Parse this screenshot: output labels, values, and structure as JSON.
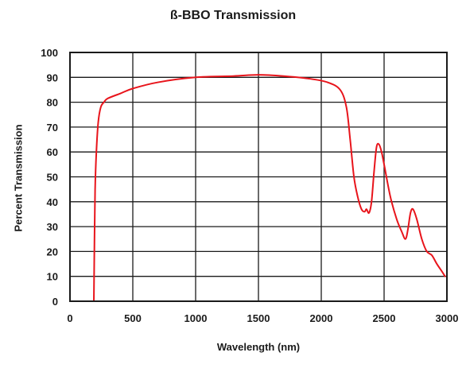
{
  "chart_data": {
    "type": "line",
    "title": "ß-BBO Transmission",
    "xlabel": "Wavelength (nm)",
    "ylabel": "Percent Transmission",
    "xlim": [
      0,
      3000
    ],
    "ylim": [
      0,
      100
    ],
    "xticks": [
      0,
      500,
      1000,
      1500,
      2000,
      2500,
      3000
    ],
    "yticks": [
      0,
      10,
      20,
      30,
      40,
      50,
      60,
      70,
      80,
      90,
      100
    ],
    "grid": true,
    "line_color": "#e8141b",
    "series": [
      {
        "x": [
          190,
          195,
          200,
          210,
          225,
          245,
          270,
          300,
          400,
          500,
          700,
          1000,
          1300,
          1500,
          1700,
          1900,
          2050,
          2150,
          2200,
          2230,
          2260,
          2290,
          2320,
          2345,
          2360,
          2380,
          2400,
          2420,
          2440,
          2460,
          2480,
          2500,
          2550,
          2600,
          2640,
          2670,
          2690,
          2710,
          2730,
          2760,
          2800,
          2840,
          2880,
          2920,
          2960,
          2985
        ],
        "y": [
          0,
          25,
          45,
          60,
          72,
          78,
          80,
          81.5,
          83.5,
          85.5,
          88,
          90,
          90.5,
          91,
          90.5,
          89.5,
          88,
          85,
          78,
          65,
          50,
          42,
          37,
          36,
          37,
          35.5,
          40,
          52,
          62,
          63,
          60,
          55,
          42,
          33,
          28,
          25,
          29,
          35.5,
          37,
          33,
          25,
          20,
          18.5,
          15,
          12,
          10
        ]
      }
    ]
  }
}
